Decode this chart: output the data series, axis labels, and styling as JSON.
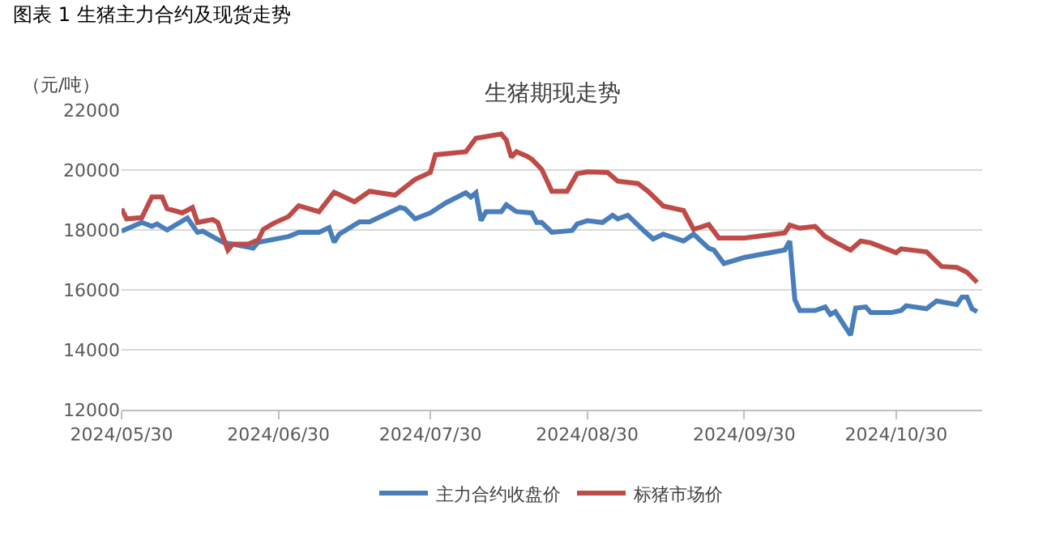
{
  "chart_data": {
    "type": "line",
    "title": "生猪期现走势",
    "ylabel": "（元/吨）",
    "annotations": [
      "图表 1 生猪主力合约及现货走势"
    ],
    "series": [
      {
        "name": "主力合约收盘价",
        "color": "#4a7ebb",
        "x": [
          "2024-05-30",
          "2024-06-03",
          "2024-06-05",
          "2024-06-06",
          "2024-06-08",
          "2024-06-12",
          "2024-06-14",
          "2024-06-15",
          "2024-06-19",
          "2024-06-25",
          "2024-06-26",
          "2024-07-02",
          "2024-07-04",
          "2024-07-08",
          "2024-07-10",
          "2024-07-11",
          "2024-07-12",
          "2024-07-16",
          "2024-07-18",
          "2024-07-24",
          "2024-07-25",
          "2024-07-27",
          "2024-07-30",
          "2024-08-02",
          "2024-08-06",
          "2024-08-07",
          "2024-08-08",
          "2024-08-09",
          "2024-08-10",
          "2024-08-13",
          "2024-08-14",
          "2024-08-16",
          "2024-08-19",
          "2024-08-20",
          "2024-08-21",
          "2024-08-23",
          "2024-08-27",
          "2024-08-28",
          "2024-08-30",
          "2024-09-02",
          "2024-09-04",
          "2024-09-05",
          "2024-09-07",
          "2024-09-10",
          "2024-09-12",
          "2024-09-14",
          "2024-09-18",
          "2024-09-20",
          "2024-09-23",
          "2024-09-24",
          "2024-09-26",
          "2024-09-30",
          "2024-10-08",
          "2024-10-09",
          "2024-10-10",
          "2024-10-11",
          "2024-10-14",
          "2024-10-16",
          "2024-10-17",
          "2024-10-18",
          "2024-10-21",
          "2024-10-22",
          "2024-10-24",
          "2024-10-25",
          "2024-10-29",
          "2024-10-31",
          "2024-11-01",
          "2024-11-05",
          "2024-11-07",
          "2024-11-11",
          "2024-11-12",
          "2024-11-13",
          "2024-11-14",
          "2024-11-15"
        ],
        "values": [
          17960,
          18250,
          18120,
          18200,
          18000,
          18400,
          17920,
          17960,
          17590,
          17390,
          17590,
          17780,
          17920,
          17920,
          18080,
          17590,
          17860,
          18270,
          18270,
          18750,
          18710,
          18370,
          18570,
          18900,
          19240,
          19100,
          19240,
          18310,
          18610,
          18610,
          18840,
          18610,
          18570,
          18250,
          18250,
          17920,
          17980,
          18200,
          18310,
          18250,
          18490,
          18370,
          18490,
          18000,
          17700,
          17860,
          17630,
          17860,
          17390,
          17330,
          16880,
          17080,
          17330,
          17630,
          15670,
          15310,
          15310,
          15430,
          15180,
          15270,
          14490,
          15390,
          15430,
          15240,
          15240,
          15310,
          15470,
          15370,
          15630,
          15510,
          15760,
          15760,
          15370,
          15270
        ]
      },
      {
        "name": "标猪市场价",
        "color": "#be4b48",
        "x": [
          "2024-05-30",
          "2024-05-31",
          "2024-06-03",
          "2024-06-05",
          "2024-06-07",
          "2024-06-08",
          "2024-06-11",
          "2024-06-13",
          "2024-06-14",
          "2024-06-17",
          "2024-06-18",
          "2024-06-20",
          "2024-06-21",
          "2024-06-24",
          "2024-06-26",
          "2024-06-27",
          "2024-06-29",
          "2024-07-02",
          "2024-07-04",
          "2024-07-08",
          "2024-07-11",
          "2024-07-15",
          "2024-07-18",
          "2024-07-23",
          "2024-07-27",
          "2024-07-30",
          "2024-07-31",
          "2024-08-06",
          "2024-08-08",
          "2024-08-13",
          "2024-08-14",
          "2024-08-15",
          "2024-08-16",
          "2024-08-18",
          "2024-08-19",
          "2024-08-21",
          "2024-08-23",
          "2024-08-26",
          "2024-08-28",
          "2024-08-30",
          "2024-09-03",
          "2024-09-05",
          "2024-09-09",
          "2024-09-11",
          "2024-09-14",
          "2024-09-18",
          "2024-09-20",
          "2024-09-23",
          "2024-09-25",
          "2024-09-30",
          "2024-10-08",
          "2024-10-09",
          "2024-10-11",
          "2024-10-14",
          "2024-10-16",
          "2024-10-18",
          "2024-10-21",
          "2024-10-23",
          "2024-10-25",
          "2024-10-30",
          "2024-10-31",
          "2024-11-05",
          "2024-11-08",
          "2024-11-11",
          "2024-11-13",
          "2024-11-15"
        ],
        "values": [
          18710,
          18370,
          18410,
          19100,
          19100,
          18710,
          18570,
          18750,
          18250,
          18350,
          18250,
          17330,
          17530,
          17530,
          17670,
          18020,
          18220,
          18450,
          18810,
          18610,
          19260,
          18940,
          19290,
          19160,
          19690,
          19920,
          20510,
          20610,
          21060,
          21200,
          21000,
          20430,
          20610,
          20470,
          20370,
          20020,
          19290,
          19290,
          19880,
          19940,
          19920,
          19630,
          19550,
          19290,
          18800,
          18650,
          18020,
          18180,
          17730,
          17730,
          17900,
          18160,
          18060,
          18120,
          17780,
          17590,
          17330,
          17630,
          17570,
          17240,
          17370,
          17270,
          16780,
          16750,
          16590,
          16250
        ]
      }
    ],
    "xlim": [
      "2024-05-30",
      "2024-11-16"
    ],
    "xticks": [
      {
        "value": "2024-05-30",
        "label": "2024/05/30"
      },
      {
        "value": "2024-06-30",
        "label": "2024/06/30"
      },
      {
        "value": "2024-07-30",
        "label": "2024/07/30"
      },
      {
        "value": "2024-08-30",
        "label": "2024/08/30"
      },
      {
        "value": "2024-09-30",
        "label": "2024/09/30"
      },
      {
        "value": "2024-10-30",
        "label": "2024/10/30"
      }
    ],
    "ylim": [
      12000,
      22000
    ],
    "yticks": [
      12000,
      14000,
      16000,
      18000,
      20000,
      22000
    ],
    "grid": "y",
    "legend": "bottom",
    "marker": "none",
    "line_style": "solid"
  }
}
